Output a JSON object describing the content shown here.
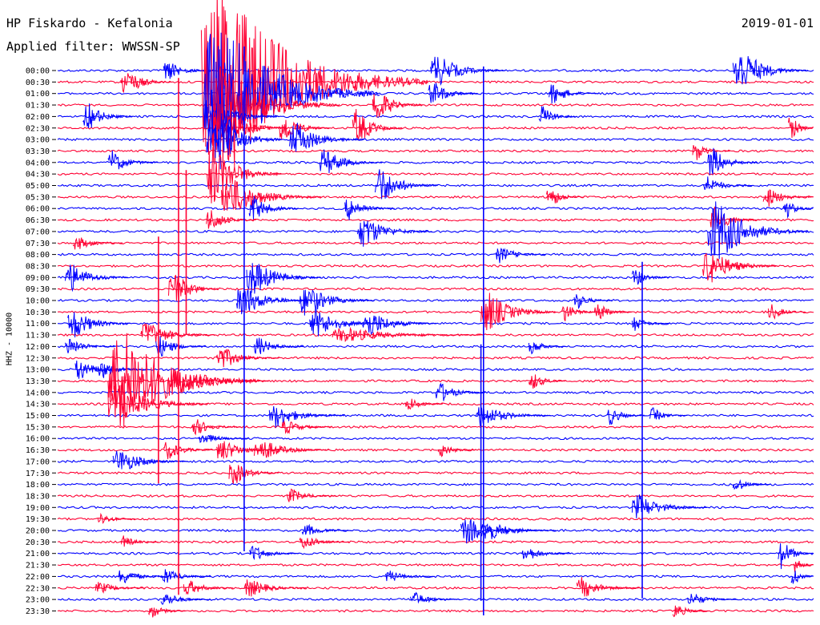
{
  "header": {
    "station": "HP Fiskardo - Kefalonia",
    "date": "2019-01-01",
    "filter": "Applied filter: WWSSN-SP"
  },
  "channel_label": "HHZ - 10000",
  "colors": {
    "blue": "#0000ff",
    "red": "#ff0033"
  },
  "chart_data": {
    "type": "line",
    "title": "HP Fiskardo - Kefalonia",
    "date": "2019-01-01",
    "filter": "WWSSN-SP",
    "ylabel": "HHZ - 10000",
    "xlabel": "",
    "tick_labels": [
      "00:00",
      "00:30",
      "01:00",
      "01:30",
      "02:00",
      "02:30",
      "03:00",
      "03:30",
      "04:00",
      "04:30",
      "05:00",
      "05:30",
      "06:00",
      "06:30",
      "07:00",
      "07:30",
      "08:00",
      "08:30",
      "09:00",
      "09:30",
      "10:00",
      "10:30",
      "11:00",
      "11:30",
      "12:00",
      "12:30",
      "13:00",
      "13:30",
      "14:00",
      "14:30",
      "15:00",
      "15:30",
      "16:00",
      "16:30",
      "17:00",
      "17:30",
      "18:00",
      "18:30",
      "19:00",
      "19:30",
      "20:00",
      "20:30",
      "21:00",
      "21:30",
      "22:00",
      "22:30",
      "23:00",
      "23:30"
    ],
    "trace_minutes": 30,
    "x_range_minutes": [
      0,
      30
    ],
    "series_colors": [
      "#0000ff",
      "#ff0033"
    ],
    "events": [
      {
        "row": 0,
        "minute": 4.2,
        "amp": 18,
        "dur": 2.0,
        "color": "#0000ff"
      },
      {
        "row": 0,
        "minute": 14.8,
        "amp": 30,
        "dur": 3.0,
        "color": "#0000ff"
      },
      {
        "row": 0,
        "minute": 26.8,
        "amp": 45,
        "dur": 3.0,
        "color": "#0000ff"
      },
      {
        "row": 1,
        "minute": 2.5,
        "amp": 30,
        "dur": 2.0,
        "color": "#ff0033"
      },
      {
        "row": 1,
        "minute": 5.7,
        "amp": 190,
        "dur": 9.0,
        "color": "#ff0033"
      },
      {
        "row": 2,
        "minute": 5.8,
        "amp": 140,
        "dur": 7.0,
        "color": "#0000ff"
      },
      {
        "row": 2,
        "minute": 14.7,
        "amp": 25,
        "dur": 2.0,
        "color": "#0000ff"
      },
      {
        "row": 2,
        "minute": 19.5,
        "amp": 20,
        "dur": 2.0,
        "color": "#0000ff"
      },
      {
        "row": 3,
        "minute": 6.2,
        "amp": 80,
        "dur": 5.0,
        "color": "#ff0033"
      },
      {
        "row": 3,
        "minute": 12.5,
        "amp": 35,
        "dur": 2.0,
        "color": "#ff0033"
      },
      {
        "row": 4,
        "minute": 1.0,
        "amp": 28,
        "dur": 2.0,
        "color": "#0000ff"
      },
      {
        "row": 4,
        "minute": 5.8,
        "amp": 40,
        "dur": 3.0,
        "color": "#0000ff"
      },
      {
        "row": 4,
        "minute": 19.1,
        "amp": 20,
        "dur": 1.5,
        "color": "#0000ff"
      },
      {
        "row": 5,
        "minute": 6.1,
        "amp": 50,
        "dur": 3.0,
        "color": "#ff0033"
      },
      {
        "row": 5,
        "minute": 8.8,
        "amp": 30,
        "dur": 2.0,
        "color": "#ff0033"
      },
      {
        "row": 5,
        "minute": 11.7,
        "amp": 35,
        "dur": 2.0,
        "color": "#ff0033"
      },
      {
        "row": 5,
        "minute": 29.0,
        "amp": 28,
        "dur": 2.0,
        "color": "#ff0033"
      },
      {
        "row": 6,
        "minute": 9.2,
        "amp": 32,
        "dur": 3.0,
        "color": "#0000ff"
      },
      {
        "row": 6,
        "minute": 5.9,
        "amp": 60,
        "dur": 3.0,
        "color": "#0000ff"
      },
      {
        "row": 7,
        "minute": 25.2,
        "amp": 20,
        "dur": 1.5,
        "color": "#ff0033"
      },
      {
        "row": 8,
        "minute": 2.0,
        "amp": 22,
        "dur": 2.0,
        "color": "#0000ff"
      },
      {
        "row": 8,
        "minute": 10.4,
        "amp": 26,
        "dur": 2.5,
        "color": "#0000ff"
      },
      {
        "row": 8,
        "minute": 25.8,
        "amp": 30,
        "dur": 2.0,
        "color": "#0000ff"
      },
      {
        "row": 9,
        "minute": 5.9,
        "amp": 60,
        "dur": 3.0,
        "color": "#ff0033"
      },
      {
        "row": 10,
        "minute": 12.6,
        "amp": 36,
        "dur": 2.5,
        "color": "#0000ff"
      },
      {
        "row": 10,
        "minute": 25.6,
        "amp": 18,
        "dur": 2.0,
        "color": "#0000ff"
      },
      {
        "row": 11,
        "minute": 6.5,
        "amp": 38,
        "dur": 4.0,
        "color": "#ff0033"
      },
      {
        "row": 11,
        "minute": 19.4,
        "amp": 22,
        "dur": 1.5,
        "color": "#ff0033"
      },
      {
        "row": 11,
        "minute": 28.0,
        "amp": 20,
        "dur": 2.0,
        "color": "#ff0033"
      },
      {
        "row": 12,
        "minute": 7.6,
        "amp": 25,
        "dur": 2.0,
        "color": "#0000ff"
      },
      {
        "row": 12,
        "minute": 11.4,
        "amp": 22,
        "dur": 2.0,
        "color": "#0000ff"
      },
      {
        "row": 12,
        "minute": 28.8,
        "amp": 20,
        "dur": 2.0,
        "color": "#0000ff"
      },
      {
        "row": 13,
        "minute": 5.9,
        "amp": 22,
        "dur": 2.0,
        "color": "#ff0033"
      },
      {
        "row": 13,
        "minute": 25.9,
        "amp": 26,
        "dur": 2.0,
        "color": "#ff0033"
      },
      {
        "row": 14,
        "minute": 11.9,
        "amp": 30,
        "dur": 3.0,
        "color": "#0000ff"
      },
      {
        "row": 14,
        "minute": 25.8,
        "amp": 60,
        "dur": 4.0,
        "color": "#0000ff"
      },
      {
        "row": 15,
        "minute": 0.6,
        "amp": 14,
        "dur": 2.0,
        "color": "#ff0033"
      },
      {
        "row": 16,
        "minute": 17.4,
        "amp": 16,
        "dur": 2.0,
        "color": "#0000ff"
      },
      {
        "row": 17,
        "minute": 25.6,
        "amp": 34,
        "dur": 3.0,
        "color": "#ff0033"
      },
      {
        "row": 18,
        "minute": 0.3,
        "amp": 28,
        "dur": 2.5,
        "color": "#0000ff"
      },
      {
        "row": 18,
        "minute": 7.5,
        "amp": 35,
        "dur": 3.0,
        "color": "#0000ff"
      },
      {
        "row": 18,
        "minute": 22.8,
        "amp": 18,
        "dur": 1.5,
        "color": "#0000ff"
      },
      {
        "row": 19,
        "minute": 4.4,
        "amp": 40,
        "dur": 2.0,
        "color": "#ff0033"
      },
      {
        "row": 20,
        "minute": 7.1,
        "amp": 30,
        "dur": 3.0,
        "color": "#0000ff"
      },
      {
        "row": 20,
        "minute": 9.6,
        "amp": 30,
        "dur": 3.0,
        "color": "#0000ff"
      },
      {
        "row": 20,
        "minute": 20.5,
        "amp": 16,
        "dur": 1.5,
        "color": "#0000ff"
      },
      {
        "row": 21,
        "minute": 16.8,
        "amp": 40,
        "dur": 3.0,
        "color": "#ff0033"
      },
      {
        "row": 21,
        "minute": 20.0,
        "amp": 18,
        "dur": 1.5,
        "color": "#ff0033"
      },
      {
        "row": 21,
        "minute": 21.3,
        "amp": 18,
        "dur": 1.5,
        "color": "#ff0033"
      },
      {
        "row": 21,
        "minute": 28.2,
        "amp": 16,
        "dur": 1.5,
        "color": "#ff0033"
      },
      {
        "row": 22,
        "minute": 0.4,
        "amp": 30,
        "dur": 2.5,
        "color": "#0000ff"
      },
      {
        "row": 22,
        "minute": 10.0,
        "amp": 28,
        "dur": 3.0,
        "color": "#0000ff"
      },
      {
        "row": 22,
        "minute": 12.1,
        "amp": 26,
        "dur": 3.0,
        "color": "#0000ff"
      },
      {
        "row": 22,
        "minute": 22.8,
        "amp": 14,
        "dur": 1.5,
        "color": "#0000ff"
      },
      {
        "row": 23,
        "minute": 3.3,
        "amp": 25,
        "dur": 3.0,
        "color": "#ff0033"
      },
      {
        "row": 23,
        "minute": 10.9,
        "amp": 14,
        "dur": 6.0,
        "color": "#ff0033"
      },
      {
        "row": 24,
        "minute": 0.3,
        "amp": 18,
        "dur": 2.0,
        "color": "#0000ff"
      },
      {
        "row": 24,
        "minute": 3.9,
        "amp": 20,
        "dur": 2.0,
        "color": "#0000ff"
      },
      {
        "row": 24,
        "minute": 7.8,
        "amp": 18,
        "dur": 2.0,
        "color": "#0000ff"
      },
      {
        "row": 24,
        "minute": 18.7,
        "amp": 14,
        "dur": 1.5,
        "color": "#0000ff"
      },
      {
        "row": 25,
        "minute": 6.3,
        "amp": 22,
        "dur": 2.5,
        "color": "#ff0033"
      },
      {
        "row": 26,
        "minute": 0.7,
        "amp": 22,
        "dur": 2.0,
        "color": "#0000ff"
      },
      {
        "row": 26,
        "minute": 1.6,
        "amp": 18,
        "dur": 2.0,
        "color": "#0000ff"
      },
      {
        "row": 27,
        "minute": 2.0,
        "amp": 100,
        "dur": 6.0,
        "color": "#ff0033"
      },
      {
        "row": 27,
        "minute": 4.4,
        "amp": 26,
        "dur": 4.0,
        "color": "#ff0033"
      },
      {
        "row": 27,
        "minute": 18.7,
        "amp": 18,
        "dur": 1.5,
        "color": "#ff0033"
      },
      {
        "row": 28,
        "minute": 15.0,
        "amp": 20,
        "dur": 2.0,
        "color": "#0000ff"
      },
      {
        "row": 29,
        "minute": 2.0,
        "amp": 40,
        "dur": 4.0,
        "color": "#ff0033"
      },
      {
        "row": 29,
        "minute": 13.8,
        "amp": 14,
        "dur": 1.5,
        "color": "#ff0033"
      },
      {
        "row": 30,
        "minute": 8.4,
        "amp": 22,
        "dur": 3.0,
        "color": "#0000ff"
      },
      {
        "row": 30,
        "minute": 16.6,
        "amp": 22,
        "dur": 3.0,
        "color": "#0000ff"
      },
      {
        "row": 30,
        "minute": 21.8,
        "amp": 18,
        "dur": 1.5,
        "color": "#0000ff"
      },
      {
        "row": 30,
        "minute": 23.5,
        "amp": 14,
        "dur": 1.5,
        "color": "#0000ff"
      },
      {
        "row": 31,
        "minute": 5.3,
        "amp": 16,
        "dur": 2.0,
        "color": "#ff0033"
      },
      {
        "row": 31,
        "minute": 8.9,
        "amp": 14,
        "dur": 2.0,
        "color": "#ff0033"
      },
      {
        "row": 32,
        "minute": 5.6,
        "amp": 12,
        "dur": 2.0,
        "color": "#0000ff"
      },
      {
        "row": 33,
        "minute": 4.2,
        "amp": 18,
        "dur": 2.0,
        "color": "#ff0033"
      },
      {
        "row": 33,
        "minute": 6.3,
        "amp": 22,
        "dur": 2.5,
        "color": "#ff0033"
      },
      {
        "row": 33,
        "minute": 7.8,
        "amp": 22,
        "dur": 3.0,
        "color": "#ff0033"
      },
      {
        "row": 33,
        "minute": 15.1,
        "amp": 14,
        "dur": 1.5,
        "color": "#ff0033"
      },
      {
        "row": 34,
        "minute": 2.2,
        "amp": 24,
        "dur": 3.0,
        "color": "#0000ff"
      },
      {
        "row": 35,
        "minute": 6.8,
        "amp": 24,
        "dur": 2.0,
        "color": "#ff0033"
      },
      {
        "row": 36,
        "minute": 26.8,
        "amp": 14,
        "dur": 1.5,
        "color": "#0000ff"
      },
      {
        "row": 37,
        "minute": 9.1,
        "amp": 14,
        "dur": 2.0,
        "color": "#ff0033"
      },
      {
        "row": 38,
        "minute": 22.8,
        "amp": 24,
        "dur": 3.0,
        "color": "#0000ff"
      },
      {
        "row": 39,
        "minute": 1.6,
        "amp": 12,
        "dur": 1.5,
        "color": "#ff0033"
      },
      {
        "row": 40,
        "minute": 9.7,
        "amp": 12,
        "dur": 2.0,
        "color": "#0000ff"
      },
      {
        "row": 40,
        "minute": 16.0,
        "amp": 24,
        "dur": 3.0,
        "color": "#0000ff"
      },
      {
        "row": 40,
        "minute": 16.8,
        "amp": 20,
        "dur": 3.0,
        "color": "#0000ff"
      },
      {
        "row": 41,
        "minute": 2.5,
        "amp": 12,
        "dur": 1.5,
        "color": "#ff0033"
      },
      {
        "row": 41,
        "minute": 9.6,
        "amp": 14,
        "dur": 2.0,
        "color": "#ff0033"
      },
      {
        "row": 42,
        "minute": 7.6,
        "amp": 16,
        "dur": 2.0,
        "color": "#0000ff"
      },
      {
        "row": 42,
        "minute": 18.4,
        "amp": 16,
        "dur": 2.0,
        "color": "#0000ff"
      },
      {
        "row": 42,
        "minute": 28.6,
        "amp": 30,
        "dur": 3.0,
        "color": "#0000ff"
      },
      {
        "row": 43,
        "minute": 29.2,
        "amp": 20,
        "dur": 2.0,
        "color": "#ff0033"
      },
      {
        "row": 44,
        "minute": 2.4,
        "amp": 16,
        "dur": 2.0,
        "color": "#0000ff"
      },
      {
        "row": 44,
        "minute": 4.1,
        "amp": 16,
        "dur": 2.0,
        "color": "#0000ff"
      },
      {
        "row": 44,
        "minute": 13.0,
        "amp": 12,
        "dur": 2.0,
        "color": "#0000ff"
      },
      {
        "row": 44,
        "minute": 29.1,
        "amp": 24,
        "dur": 2.0,
        "color": "#0000ff"
      },
      {
        "row": 45,
        "minute": 1.5,
        "amp": 12,
        "dur": 2.0,
        "color": "#ff0033"
      },
      {
        "row": 45,
        "minute": 5.0,
        "amp": 16,
        "dur": 2.0,
        "color": "#ff0033"
      },
      {
        "row": 45,
        "minute": 7.4,
        "amp": 18,
        "dur": 2.5,
        "color": "#ff0033"
      },
      {
        "row": 45,
        "minute": 20.6,
        "amp": 20,
        "dur": 2.5,
        "color": "#ff0033"
      },
      {
        "row": 46,
        "minute": 4.1,
        "amp": 14,
        "dur": 2.0,
        "color": "#0000ff"
      },
      {
        "row": 46,
        "minute": 14.0,
        "amp": 14,
        "dur": 2.0,
        "color": "#0000ff"
      },
      {
        "row": 46,
        "minute": 25.0,
        "amp": 14,
        "dur": 2.0,
        "color": "#0000ff"
      },
      {
        "row": 47,
        "minute": 3.6,
        "amp": 14,
        "dur": 1.5,
        "color": "#ff0033"
      },
      {
        "row": 47,
        "minute": 24.4,
        "amp": 14,
        "dur": 1.5,
        "color": "#ff0033"
      }
    ],
    "spikes": [
      {
        "row": 0,
        "minute": 7.4,
        "up": 30,
        "down": 600,
        "color": "#0000ff"
      },
      {
        "row": 0,
        "minute": 16.9,
        "up": 5,
        "down": 680,
        "color": "#0000ff"
      },
      {
        "row": 1,
        "minute": 4.8,
        "up": 5,
        "down": 640,
        "color": "#ff0033"
      },
      {
        "row": 9,
        "minute": 5.1,
        "up": 5,
        "down": 200,
        "color": "#ff0033"
      },
      {
        "row": 15,
        "minute": 4.0,
        "up": 8,
        "down": 300,
        "color": "#ff0033"
      },
      {
        "row": 25,
        "minute": 23.2,
        "up": 120,
        "down": 300,
        "color": "#0000ff"
      },
      {
        "row": 28,
        "minute": 16.8,
        "up": 60,
        "down": 260,
        "color": "#0000ff"
      }
    ]
  }
}
